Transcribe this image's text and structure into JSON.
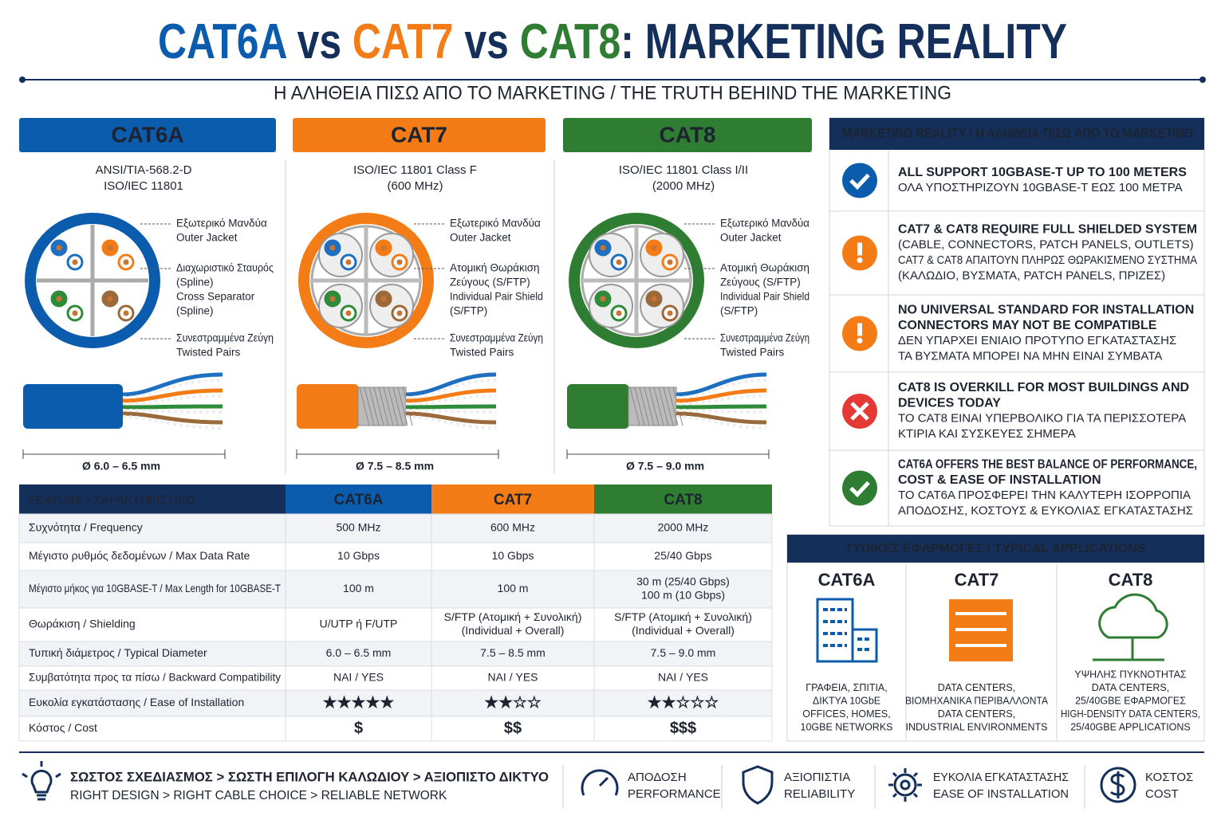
{
  "header": {
    "title_parts": [
      {
        "text": "CAT6A",
        "color": "#0b5cad"
      },
      {
        "text": " vs ",
        "color": "#14305a"
      },
      {
        "text": "CAT7",
        "color": "#f47c16"
      },
      {
        "text": " vs ",
        "color": "#14305a"
      },
      {
        "text": "CAT8",
        "color": "#2e7d32"
      },
      {
        "text": ": MARKETING REALITY",
        "color": "#14305a"
      }
    ],
    "subtitle": "Η ΑΛΗΘΕΙΑ ΠΙΣΩ ΑΠΟ ΤΟ MARKETING / THE TRUTH BEHIND THE MARKETING"
  },
  "cables": [
    {
      "name": "CAT6A",
      "color": "#0b5cad",
      "shielded": false,
      "standard": [
        "ANSI/TIA-568.2-D",
        "ISO/IEC 11801"
      ],
      "callouts": [
        [
          "Εξωτερικό Μανδύα",
          "Outer Jacket"
        ],
        [
          "Διαχωριστικό Σταυρός",
          "(Spline)",
          "Cross Separator",
          "(Spline)"
        ],
        [
          "Συνεστραμμένα Ζεύγη",
          "Twisted Pairs"
        ]
      ],
      "diameter": "Ø 6.0 – 6.5 mm"
    },
    {
      "name": "CAT7",
      "color": "#f47c16",
      "shielded": true,
      "standard": [
        "ISO/IEC 11801 Class F",
        "(600 MHz)"
      ],
      "callouts": [
        [
          "Εξωτερικό Μανδύα",
          "Outer Jacket"
        ],
        [
          "Ατομική Θωράκιση",
          "Ζεύγους (S/FTP)",
          "Individual Pair Shield",
          "(S/FTP)"
        ],
        [
          "Συνεστραμμένα Ζεύγη",
          "Twisted Pairs"
        ]
      ],
      "diameter": "Ø 7.5 – 8.5 mm"
    },
    {
      "name": "CAT8",
      "color": "#2e7d32",
      "shielded": true,
      "standard": [
        "ISO/IEC 11801 Class I/II",
        "(2000 MHz)"
      ],
      "callouts": [
        [
          "Εξωτερικό Μανδύα",
          "Outer Jacket"
        ],
        [
          "Ατομική Θωράκιση",
          "Ζεύγους (S/FTP)",
          "Individual Pair Shield",
          "(S/FTP)"
        ],
        [
          "Συνεστραμμένα Ζεύγη",
          "Twisted Pairs"
        ]
      ],
      "diameter": "Ø 7.5 – 9.0 mm"
    }
  ],
  "table": {
    "header": [
      "FEATURE / ΧΑΡΑΚΤΗΡΙΣΤΙΚΟ",
      "CAT6A",
      "CAT7",
      "CAT8"
    ],
    "header_colors": [
      "#14305a",
      "#0b5cad",
      "#f47c16",
      "#2e7d32"
    ],
    "rows": [
      {
        "cells": [
          [
            "Συχνότητα / Frequency"
          ],
          [
            "500 MHz"
          ],
          [
            "600 MHz"
          ],
          [
            "2000 MHz"
          ]
        ]
      },
      {
        "cells": [
          [
            "Μέγιστο ρυθμός δεδομένων / Max Data Rate"
          ],
          [
            "10 Gbps"
          ],
          [
            "10 Gbps"
          ],
          [
            "25/40 Gbps"
          ]
        ]
      },
      {
        "cells": [
          [
            "Μέγιστο μήκος για 10GBASE-T / Max Length for 10GBASE-T"
          ],
          [
            "100 m"
          ],
          [
            "100 m"
          ],
          [
            "30 m (25/40 Gbps)",
            "100 m (10 Gbps)"
          ]
        ]
      },
      {
        "cells": [
          [
            "Θωράκιση / Shielding"
          ],
          [
            "U/UTP ή F/UTP"
          ],
          [
            "S/FTP (Ατομική + Συνολική)",
            "(Individual + Overall)"
          ],
          [
            "S/FTP (Ατομική + Συνολική)",
            "(Individual + Overall)"
          ]
        ]
      },
      {
        "cells": [
          [
            "Τυπική διάμετρος / Typical Diameter"
          ],
          [
            "6.0 – 6.5 mm"
          ],
          [
            "7.5 – 8.5 mm"
          ],
          [
            "7.5 – 9.0 mm"
          ]
        ]
      },
      {
        "cells": [
          [
            "Συμβατότητα προς τα πίσω / Backward Compatibility"
          ],
          [
            "ΝΑΙ / YES"
          ],
          [
            "ΝΑΙ / YES"
          ],
          [
            "ΝΑΙ / YES"
          ]
        ]
      },
      {
        "cells": [
          [
            "Ευκολία εγκατάστασης / Ease of Installation"
          ],
          [
            "★★★★★"
          ],
          [
            "★★☆☆"
          ],
          [
            "★★☆☆☆"
          ]
        ],
        "colors": [
          "#2e7d32",
          "#f47c16",
          "#2e7d32"
        ]
      },
      {
        "cells": [
          [
            "Κόστος / Cost"
          ],
          [
            "$"
          ],
          [
            "$$"
          ],
          [
            "$$$"
          ]
        ],
        "colors": [
          "#2e7d32",
          "#f47c16",
          "#2e7d32"
        ]
      }
    ]
  },
  "reality": {
    "title": "MARKETING REALITY / Η ΑΛΗΘΕΙΑ ΠΙΣΩ ΑΠΟ ΤΟ MARKETING",
    "items": [
      {
        "icon": "check",
        "color": "#0b5cad",
        "bold": [
          "ALL SUPPORT 10GBASE-T UP TO 100 METERS"
        ],
        "text": [
          "ΟΛΑ ΥΠΟΣΤΗΡΙΖΟΥΝ 10GBASE-T ΕΩΣ 100 ΜΕΤΡΑ"
        ]
      },
      {
        "icon": "warn",
        "color": "#f47c16",
        "bold": [
          "CAT7 & CAT8 REQUIRE FULL SHIELDED SYSTEM"
        ],
        "text": [
          "(CABLE, CONNECTORS, PATCH PANELS, OUTLETS)",
          "CAT7 & CAT8 ΑΠΑΙΤΟΥΝ ΠΛΗΡΩΣ ΘΩΡΑΚΙΣΜΕΝΟ ΣΥΣΤΗΜΑ",
          "(ΚΑΛΩΔΙΟ, ΒΥΣΜΑΤΑ, PATCH PANELS, ΠΡΙΖΕΣ)"
        ]
      },
      {
        "icon": "warn",
        "color": "#f47c16",
        "bold": [
          "NO UNIVERSAL STANDARD FOR INSTALLATION",
          "CONNECTORS MAY NOT BE COMPATIBLE"
        ],
        "text": [
          "ΔΕΝ ΥΠΑΡΧΕΙ ΕΝΙΑΙΟ ΠΡΟΤΥΠΟ ΕΓΚΑΤΑΣΤΑΣΗΣ",
          "ΤΑ ΒΥΣΜΑΤΑ ΜΠΟΡΕΙ ΝΑ ΜΗΝ ΕΙΝΑΙ ΣΥΜΒΑΤΑ"
        ]
      },
      {
        "icon": "cross",
        "color": "#e53935",
        "bold": [
          "CAT8 IS OVERKILL FOR MOST BUILDINGS AND",
          "DEVICES TODAY"
        ],
        "text": [
          "ΤΟ CAT8 ΕΙΝΑΙ ΥΠΕΡΒΟΛΙΚΟ ΓΙΑ ΤΑ ΠΕΡΙΣΣΟΤΕΡΑ",
          "ΚΤΙΡΙΑ ΚΑΙ ΣΥΣΚΕΥΕΣ ΣΗΜΕΡΑ"
        ]
      },
      {
        "icon": "check",
        "color": "#2e7d32",
        "bold": [
          "CAT6A OFFERS THE BEST BALANCE OF PERFORMANCE,",
          "COST & EASE OF INSTALLATION"
        ],
        "text": [
          "ΤΟ CAT6A ΠΡΟΣΦΕΡΕΙ ΤΗΝ ΚΑΛΥΤΕΡΗ ΙΣΟΡΡΟΠΙΑ",
          "ΑΠΟΔΟΣΗΣ, ΚΟΣΤΟΥΣ & ΕΥΚΟΛΙΑΣ ΕΓΚΑΤΑΣΤΑΣΗΣ"
        ]
      }
    ]
  },
  "applications": {
    "title": "ΤΥΠΙΚΕΣ ΕΦΑΡΜΟΓΕΣ / TYPICAL APPLICATIONS",
    "columns": [
      {
        "name": "CAT6A",
        "color": "#0b5cad",
        "lines": [
          "ΓΡΑΦΕΙΑ, ΣΠΙΤΙΑ,",
          "ΔΙΚΤΥΑ 10GbE",
          "OFFICES, HOMES,",
          "10GBE NETWORKS"
        ]
      },
      {
        "name": "CAT7",
        "color": "#f47c16",
        "lines": [
          "DATA CENTERS,",
          "ΒΙΟΜΗΧΑΝΙΚΑ ΠΕΡΙΒΑΛΛΟΝΤΑ",
          "DATA CENTERS,",
          "INDUSTRIAL ENVIRONMENTS"
        ]
      },
      {
        "name": "CAT8",
        "color": "#2e7d32",
        "lines": [
          "ΥΨΗΛΗΣ ΠΥΚΝΟΤΗΤΑΣ",
          "DATA CENTERS,",
          "25/40GBE ΕΦΑΡΜΟΓΕΣ",
          "HIGH-DENSITY DATA CENTERS,",
          "25/40GBE APPLICATIONS"
        ]
      }
    ]
  },
  "footer": {
    "lead": [
      "ΣΩΣΤΟΣ ΣΧΕΔΙΑΣΜΟΣ > ΣΩΣΤΗ ΕΠΙΛΟΓΗ ΚΑΛΩΔΙΟΥ > ΑΞΙΟΠΙΣΤΟ ΔΙΚΤΥΟ",
      "RIGHT DESIGN > RIGHT CABLE CHOICE > RELIABLE NETWORK"
    ],
    "features": [
      [
        "ΑΠΟΔΟΣΗ",
        "PERFORMANCE"
      ],
      [
        "ΑΞΙΟΠΙΣΤΙΑ",
        "RELIABILITY"
      ],
      [
        "ΕΥΚΟΛΙΑ ΕΓΚΑΤΑΣΤΑΣΗΣ",
        "EASE OF INSTALLATION"
      ],
      [
        "ΚΟΣΤΟΣ",
        "COST"
      ]
    ]
  }
}
